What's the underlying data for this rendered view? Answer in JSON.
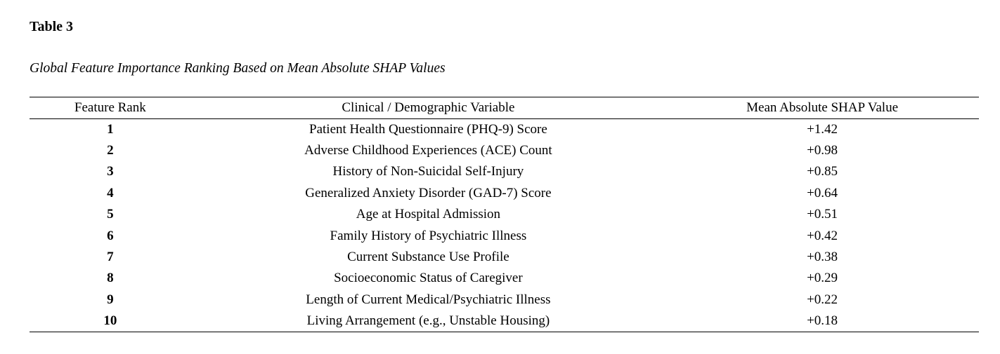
{
  "document": {
    "title": "Table 3",
    "caption": "Global Feature Importance Ranking Based on Mean Absolute SHAP Values"
  },
  "table": {
    "columns": [
      {
        "label": "Feature Rank"
      },
      {
        "label": "Clinical / Demographic Variable"
      },
      {
        "label": "Mean Absolute SHAP Value"
      }
    ],
    "rows": [
      {
        "rank": "1",
        "variable": "Patient Health Questionnaire (PHQ-9) Score",
        "shap": "+1.42"
      },
      {
        "rank": "2",
        "variable": "Adverse Childhood Experiences (ACE) Count",
        "shap": "+0.98"
      },
      {
        "rank": "3",
        "variable": "History of Non-Suicidal Self-Injury",
        "shap": "+0.85"
      },
      {
        "rank": "4",
        "variable": "Generalized Anxiety Disorder (GAD-7) Score",
        "shap": "+0.64"
      },
      {
        "rank": "5",
        "variable": "Age at Hospital Admission",
        "shap": "+0.51"
      },
      {
        "rank": "6",
        "variable": "Family History of Psychiatric Illness",
        "shap": "+0.42"
      },
      {
        "rank": "7",
        "variable": "Current Substance Use Profile",
        "shap": "+0.38"
      },
      {
        "rank": "8",
        "variable": "Socioeconomic Status of Caregiver",
        "shap": "+0.29"
      },
      {
        "rank": "9",
        "variable": "Length of Current Medical/Psychiatric Illness",
        "shap": "+0.22"
      },
      {
        "rank": "10",
        "variable": "Living Arrangement (e.g., Unstable Housing)",
        "shap": "+0.18"
      }
    ]
  }
}
